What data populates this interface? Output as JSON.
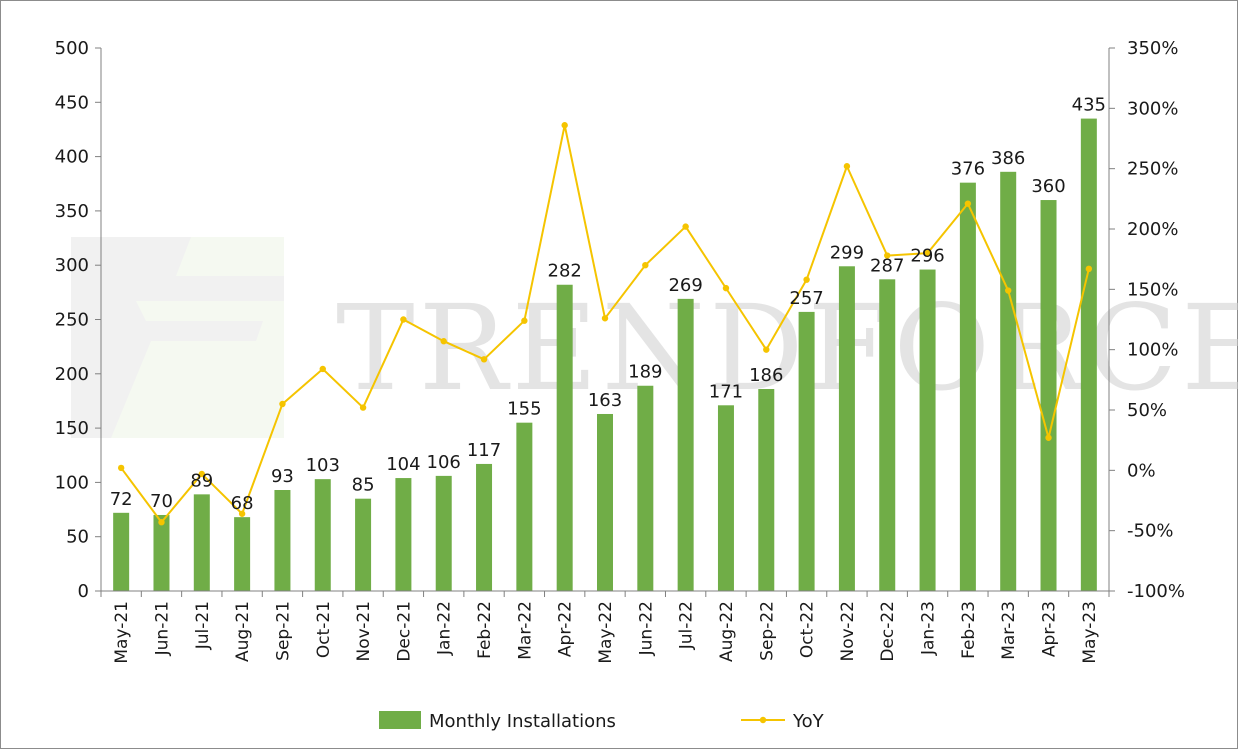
{
  "chart_data": {
    "type": "bar+line",
    "title": "",
    "categories": [
      "May-21",
      "Jun-21",
      "Jul-21",
      "Aug-21",
      "Sep-21",
      "Oct-21",
      "Nov-21",
      "Dec-21",
      "Jan-22",
      "Feb-22",
      "Mar-22",
      "Apr-22",
      "May-22",
      "Jun-22",
      "Jul-22",
      "Aug-22",
      "Sep-22",
      "Oct-22",
      "Nov-22",
      "Dec-22",
      "Jan-23",
      "Feb-23",
      "Mar-23",
      "Apr-23",
      "May-23"
    ],
    "series": [
      {
        "name": "Monthly Installations",
        "type": "bar",
        "axis": "left",
        "color": "#70ad47",
        "values": [
          72,
          70,
          89,
          68,
          93,
          103,
          85,
          104,
          106,
          117,
          155,
          282,
          163,
          189,
          269,
          171,
          186,
          257,
          299,
          287,
          296,
          376,
          386,
          360,
          435
        ]
      },
      {
        "name": "YoY",
        "type": "line",
        "axis": "right",
        "color": "#f5c400",
        "values": [
          2,
          -43,
          -3,
          -36,
          55,
          84,
          52,
          125,
          107,
          92,
          124,
          286,
          126,
          170,
          202,
          151,
          100,
          158,
          252,
          178,
          180,
          221,
          149,
          27,
          167
        ]
      }
    ],
    "y_left": {
      "min": 0,
      "max": 500,
      "step": 50,
      "ticks": [
        "0",
        "50",
        "100",
        "150",
        "200",
        "250",
        "300",
        "350",
        "400",
        "450",
        "500"
      ]
    },
    "y_right": {
      "min": -100,
      "max": 350,
      "step": 50,
      "ticks": [
        "-100%",
        "-50%",
        "0%",
        "50%",
        "100%",
        "150%",
        "200%",
        "250%",
        "300%",
        "350%"
      ]
    },
    "legend": {
      "position": "bottom",
      "items": [
        "Monthly Installations",
        "YoY"
      ]
    },
    "watermark": "TRENDFORCE"
  }
}
